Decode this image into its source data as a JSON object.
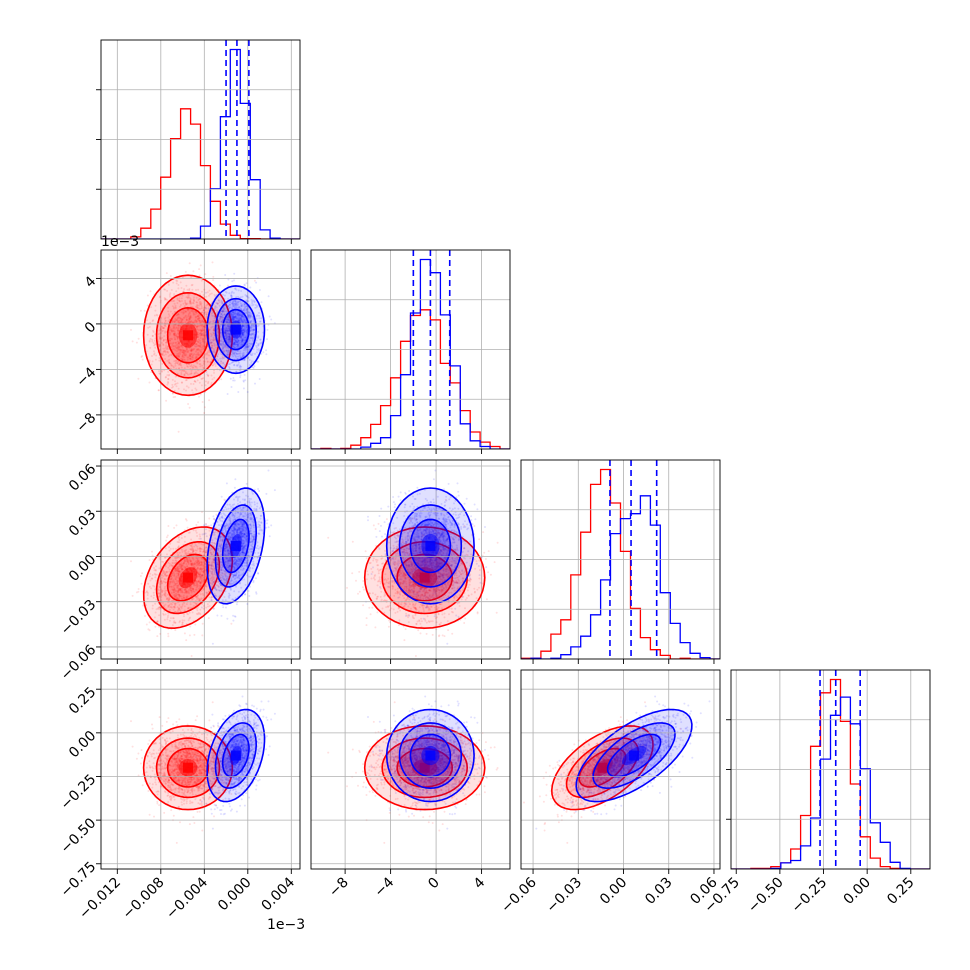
{
  "chart_data": {
    "type": "corner",
    "grid": true,
    "colors": {
      "series_a": "#ff0000",
      "series_b": "#0000ff"
    },
    "parameters": [
      {
        "range": [
          -0.0135,
          0.0048
        ],
        "ticks": [
          -0.012,
          -0.008,
          -0.004,
          0.0,
          0.004
        ],
        "tick_labels": [
          "−0.012",
          "−0.008",
          "−0.004",
          "0.000",
          "0.004"
        ],
        "offset_label": ""
      },
      {
        "range": [
          -0.011,
          0.0065
        ],
        "ticks": [
          -0.008,
          -0.004,
          0.0,
          0.004
        ],
        "tick_labels": [
          "−8",
          "−4",
          "0",
          "4"
        ],
        "offset_label": "1e−3"
      },
      {
        "range": [
          -0.068,
          0.064
        ],
        "ticks": [
          -0.06,
          -0.03,
          0.0,
          0.03,
          0.06
        ],
        "tick_labels": [
          "−0.06",
          "−0.03",
          "0.00",
          "0.03",
          "0.06"
        ],
        "offset_label": ""
      },
      {
        "range": [
          -0.78,
          0.36
        ],
        "ticks": [
          -0.75,
          -0.5,
          -0.25,
          0.0,
          0.25
        ],
        "tick_labels": [
          "−0.75",
          "−0.50",
          "−0.25",
          "0.00",
          "0.25"
        ],
        "offset_label": ""
      }
    ],
    "series": [
      {
        "color": "#ff0000",
        "mean": [
          -0.0055,
          -0.001,
          -0.014,
          -0.2
        ],
        "sd": [
          0.0017,
          0.0022,
          0.014,
          0.1
        ],
        "corr": [
          [
            1,
            0,
            0.35,
            0
          ],
          [
            0,
            1,
            0,
            0
          ],
          [
            0.35,
            0,
            1,
            0.55
          ],
          [
            0,
            0,
            0.55,
            1
          ]
        ]
      },
      {
        "color": "#0000ff",
        "mean": [
          -0.0011,
          -0.0005,
          0.007,
          -0.13
        ],
        "sd": [
          0.0011,
          0.0016,
          0.016,
          0.11
        ],
        "corr": [
          [
            1,
            0,
            0.35,
            0.35
          ],
          [
            0,
            1,
            0,
            0
          ],
          [
            0.35,
            0,
            1,
            0.65
          ],
          [
            0.35,
            0,
            0.65,
            1
          ]
        ]
      }
    ],
    "quantile_lines": [
      [
        -0.002,
        -0.001,
        0.0001
      ],
      [
        -0.002,
        -0.0005,
        0.0012
      ],
      [
        -0.009,
        0.005,
        0.022
      ],
      [
        -0.27,
        -0.18,
        -0.04
      ]
    ],
    "quantile_line_color": "#0000ff"
  }
}
